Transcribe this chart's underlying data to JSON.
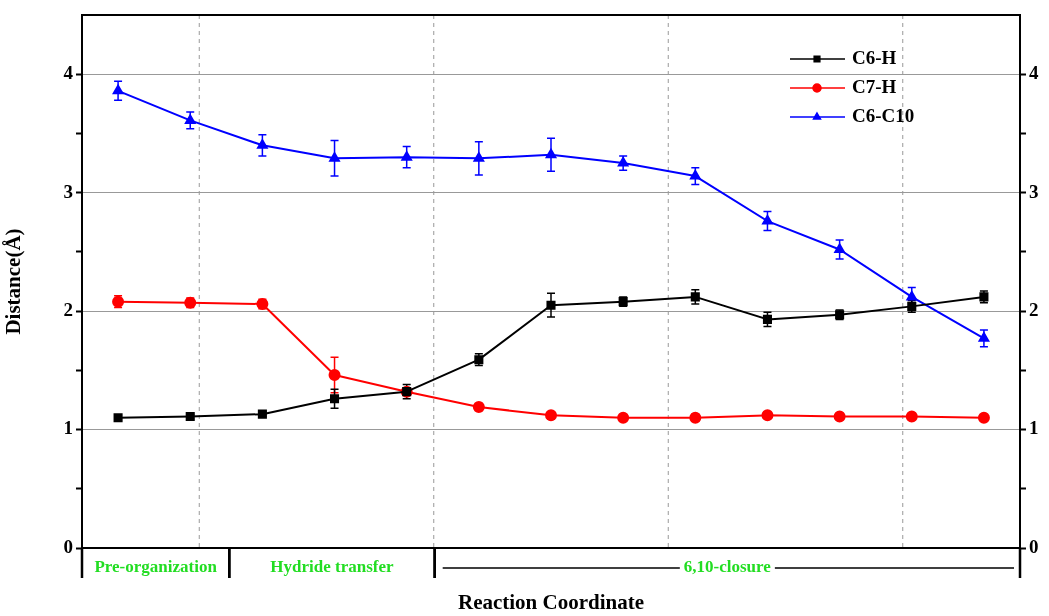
{
  "chart_data": {
    "type": "line",
    "xlabel": "Reaction Coordinate",
    "ylabel": "Distance(Å)",
    "categories": [
      null,
      null,
      null,
      null,
      null,
      null,
      null,
      null,
      null,
      null,
      null,
      null,
      null
    ],
    "ylim": [
      0,
      4.5
    ],
    "yticks": [
      0,
      {
        "value": 0.5,
        "label": null
      },
      1,
      {
        "value": 1.5,
        "label": null
      },
      2,
      {
        "value": 2.5,
        "label": null
      },
      3,
      {
        "value": 3.5,
        "label": null
      },
      4
    ],
    "y2lim": [
      0,
      4.5
    ],
    "y2ticks": [
      0,
      {
        "value": 0.5,
        "label": null
      },
      1,
      {
        "value": 1.5,
        "label": null
      },
      2,
      {
        "value": 2.5,
        "label": null
      },
      3,
      {
        "value": 3.5,
        "label": null
      },
      4
    ],
    "tick_labels": "y",
    "grid": true,
    "legend": "top right",
    "line_style": "solid",
    "series": [
      {
        "name": "C6-H",
        "color": "#000000",
        "marker": "square",
        "values": [
          1.1,
          1.11,
          1.13,
          1.26,
          1.32,
          1.59,
          2.05,
          2.08,
          2.12,
          1.93,
          1.97,
          2.04,
          2.12
        ],
        "errors": [
          0.02,
          0.02,
          0.02,
          0.08,
          0.06,
          0.05,
          0.1,
          0.04,
          0.06,
          0.06,
          0.04,
          0.05,
          0.05
        ]
      },
      {
        "name": "C7-H",
        "color": "#ff0000",
        "marker": "circle",
        "values": [
          2.08,
          2.07,
          2.06,
          1.46,
          1.32,
          1.19,
          1.12,
          1.1,
          1.1,
          1.12,
          1.11,
          1.11,
          1.1
        ],
        "errors": [
          0.05,
          0.04,
          0.04,
          0.15,
          null,
          0.03,
          0.03,
          0.02,
          0.03,
          0.02,
          0.02,
          0.02,
          0.01
        ]
      },
      {
        "name": "C6-C10",
        "color": "#0000ff",
        "marker": "triangle",
        "values": [
          3.86,
          3.61,
          3.4,
          3.29,
          3.3,
          3.29,
          3.32,
          3.25,
          3.14,
          2.76,
          2.52,
          2.12,
          1.77
        ],
        "errors": [
          0.08,
          0.07,
          0.09,
          0.15,
          0.09,
          0.14,
          0.14,
          0.06,
          0.07,
          0.08,
          0.08,
          0.08,
          0.07
        ]
      }
    ],
    "annotations": [
      "Pre-organization",
      "Hydride transfer",
      "6,10-closure"
    ]
  }
}
